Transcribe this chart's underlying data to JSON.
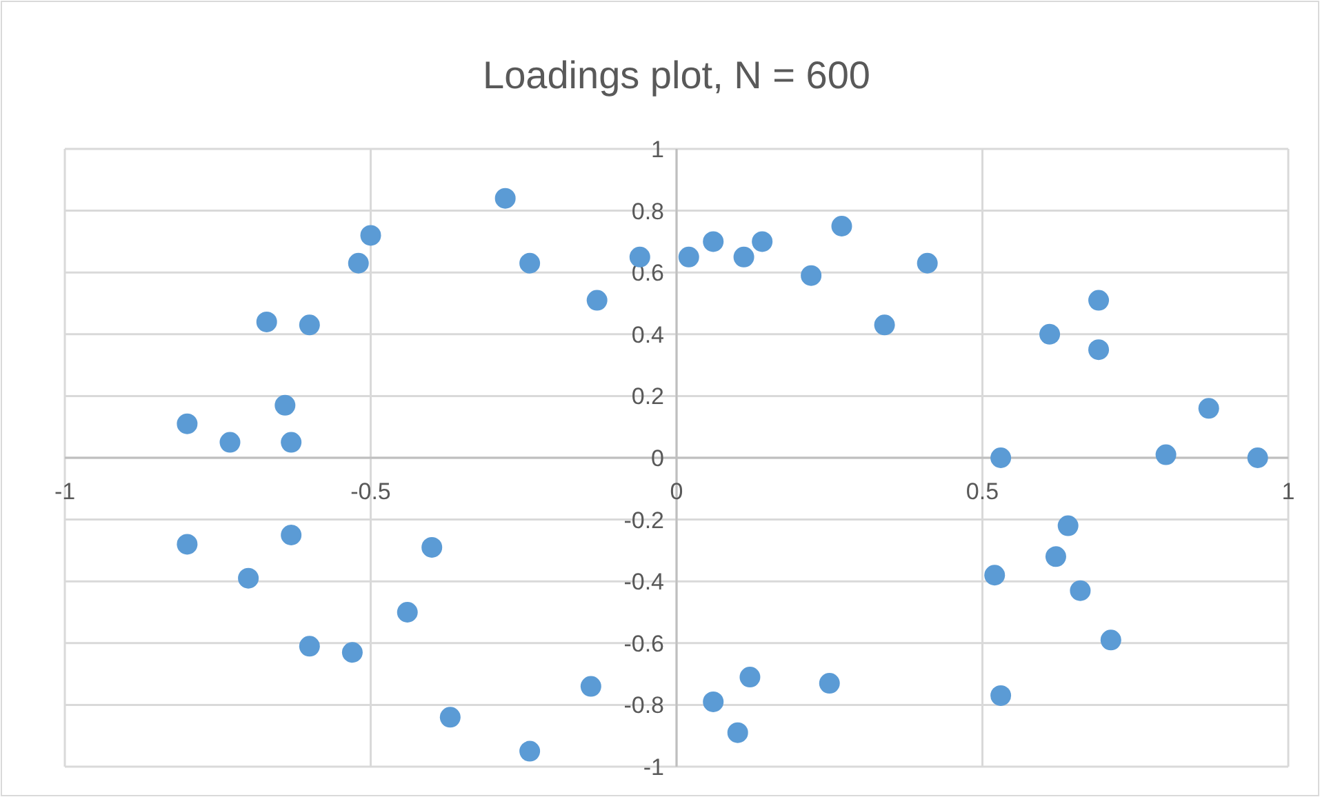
{
  "chart_data": {
    "type": "scatter",
    "title": "Loadings plot, N = 600",
    "x": [
      -0.28,
      -0.5,
      -0.52,
      -0.24,
      -0.06,
      -0.13,
      -0.67,
      -0.6,
      -0.64,
      -0.8,
      -0.73,
      -0.63,
      0.02,
      0.06,
      0.11,
      0.14,
      0.22,
      0.27,
      0.34,
      0.41,
      0.69,
      0.61,
      0.69,
      0.87,
      0.53,
      0.8,
      0.95,
      -0.8,
      -0.63,
      -0.4,
      -0.7,
      -0.44,
      -0.6,
      -0.53,
      -0.14,
      -0.37,
      -0.24,
      0.64,
      0.62,
      0.52,
      0.66,
      0.71,
      0.12,
      0.25,
      0.53,
      0.06,
      0.1
    ],
    "values": [
      0.84,
      0.72,
      0.63,
      0.63,
      0.65,
      0.51,
      0.44,
      0.43,
      0.17,
      0.11,
      0.05,
      0.05,
      0.65,
      0.7,
      0.65,
      0.7,
      0.59,
      0.75,
      0.43,
      0.63,
      0.51,
      0.4,
      0.35,
      0.16,
      0.0,
      0.01,
      0.0,
      -0.28,
      -0.25,
      -0.29,
      -0.39,
      -0.5,
      -0.61,
      -0.63,
      -0.74,
      -0.84,
      -0.95,
      -0.22,
      -0.32,
      -0.38,
      -0.43,
      -0.59,
      -0.71,
      -0.73,
      -0.77,
      -0.79,
      -0.89
    ],
    "color": "#5b9bd5",
    "marker": "circle",
    "grid": true,
    "xlim": [
      -1,
      1
    ],
    "xticks": [
      -1,
      -0.5,
      0,
      0.5,
      1
    ],
    "ylim": [
      -1,
      1
    ],
    "yticks": [
      -1,
      -0.8,
      -0.6,
      -0.4,
      -0.2,
      0,
      0.2,
      0.4,
      0.6,
      0.8,
      1
    ]
  }
}
